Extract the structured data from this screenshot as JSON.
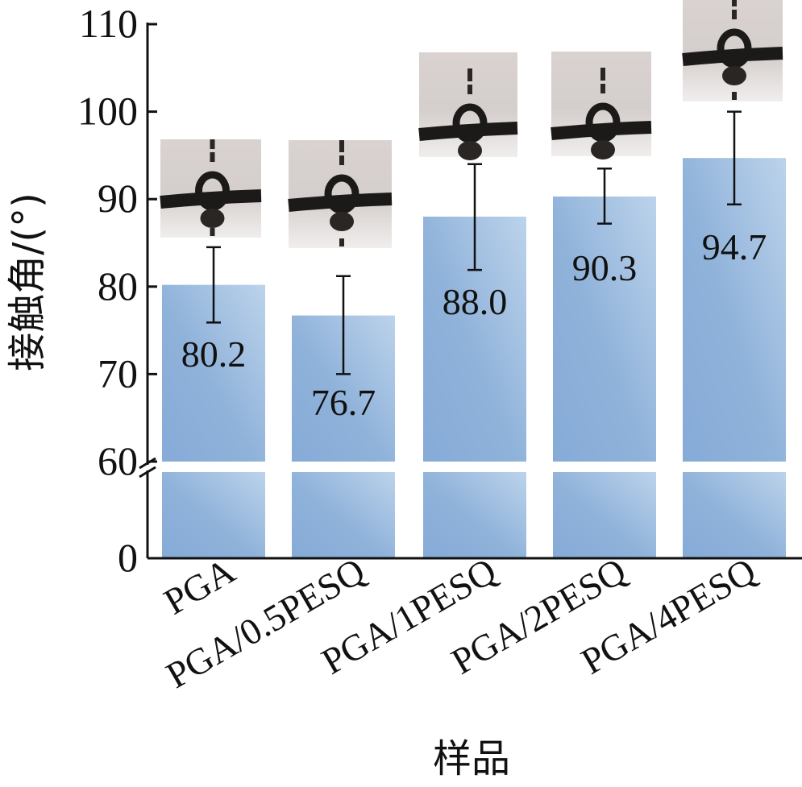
{
  "chart_data": {
    "type": "bar",
    "categories": [
      "PGA",
      "PGA/0.5PESQ",
      "PGA/1PESQ",
      "PGA/2PESQ",
      "PGA/4PESQ"
    ],
    "values": [
      80.2,
      76.7,
      88.0,
      90.3,
      94.7
    ],
    "value_labels": [
      "80.2",
      "76.7",
      "88.0",
      "90.3",
      "94.7"
    ],
    "error_high": [
      84.5,
      81.2,
      94.0,
      93.5,
      100.0
    ],
    "error_low": [
      75.9,
      70.0,
      81.9,
      87.2,
      89.4
    ],
    "droplet_insets": true,
    "ylabel": "接触角/(°)",
    "xlabel": "样品",
    "ylim": [
      0,
      110
    ],
    "axis_break": [
      0,
      60
    ],
    "yticks": [
      "0",
      "60",
      "70",
      "80",
      "90",
      "100",
      "110"
    ],
    "grid": false,
    "colors": {
      "bar_light": "#b8d0ea",
      "bar_dark": "#8aafd9",
      "axis": "#111111"
    }
  }
}
